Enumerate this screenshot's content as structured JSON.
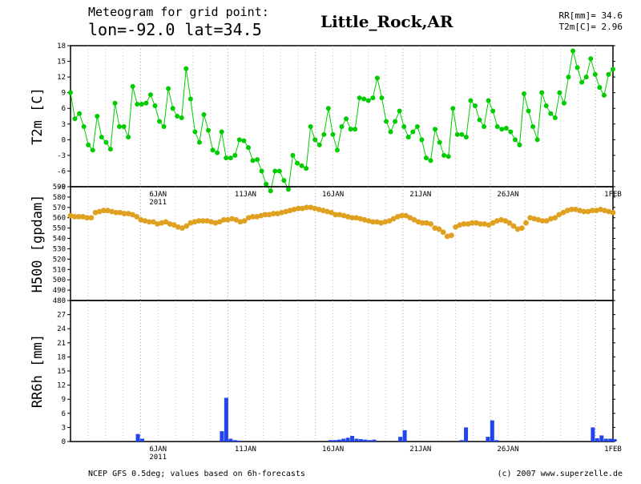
{
  "header": {
    "title_line1": "Meteogram for grid point:",
    "title_line2": "lon=-92.0  lat=34.5",
    "location": "Little_Rock,AR",
    "summary_rr": "RR[mm]= 34.6",
    "summary_t2m": "T2m[C]= 2.96"
  },
  "footer": {
    "left": "NCEP GFS 0.5deg; values based on 6h-forecasts",
    "right": "(c) 2007 www.superzelle.de"
  },
  "colors": {
    "t2m": "#00cc00",
    "h500": "#e0a020",
    "rr": "#2244ee"
  },
  "chart_data": [
    {
      "type": "line",
      "ylabel": "T2m [C]",
      "ylim": [
        -9,
        18
      ],
      "yticks": [
        "18",
        "15",
        "12",
        "9",
        "6",
        "3",
        "0",
        "-3",
        "-6",
        "-9"
      ],
      "x_tick_labels": [
        {
          "day": 5,
          "label": "6JAN",
          "sub": "2011"
        },
        {
          "day": 10,
          "label": "11JAN"
        },
        {
          "day": 15,
          "label": "16JAN"
        },
        {
          "day": 20,
          "label": "21JAN"
        },
        {
          "day": 25,
          "label": "26JAN"
        },
        {
          "day": 31,
          "label": "1FEB"
        }
      ],
      "x_start_day": 1,
      "x_end_day": 31,
      "series": [
        {
          "values": [
            9,
            4,
            5,
            2.5,
            -1,
            -2,
            4.5,
            0.5,
            -0.5,
            -1.8,
            7,
            2.5,
            2.5,
            0.5,
            10.2,
            6.8,
            6.8,
            7,
            8.6,
            6.5,
            3.5,
            2.5,
            9.8,
            6,
            4.5,
            4.2,
            13.6,
            7.8,
            1.5,
            -0.5,
            4.8,
            1.8,
            -2,
            -2.5,
            1.5,
            -3.5,
            -3.5,
            -3,
            0,
            -0.2,
            -1.5,
            -4,
            -3.8,
            -6,
            -8.5,
            -9.8,
            -6,
            -6,
            -7.8,
            -9.5,
            -3,
            -4.5,
            -5,
            -5.5,
            2.5,
            0,
            -1,
            1,
            6,
            1,
            -2,
            2.5,
            4,
            2,
            2,
            8,
            7.8,
            7.5,
            8,
            11.8,
            8,
            3.5,
            1.5,
            3.5,
            5.5,
            2.5,
            0.5,
            1.5,
            2.5,
            0,
            -3.5,
            -4,
            2,
            -0.5,
            -3,
            -3.2,
            6,
            1,
            1,
            0.5,
            7.5,
            6.5,
            3.8,
            2.5,
            7.5,
            5.5,
            2.5,
            2,
            2.2,
            1.5,
            0,
            -1,
            8.8,
            5.5,
            2.5,
            0,
            9,
            6.5,
            5,
            4.2,
            9,
            7,
            12,
            17,
            13.8,
            11,
            12,
            15.5,
            12.5,
            10,
            8.5,
            12.5,
            13.5
          ]
        }
      ]
    },
    {
      "type": "scatter",
      "ylabel": "H500 [gpdam]",
      "ylim": [
        480,
        590
      ],
      "yticks": [
        "590",
        "580",
        "570",
        "560",
        "550",
        "540",
        "530",
        "520",
        "510",
        "500",
        "490",
        "480"
      ],
      "x_tick_labels": [],
      "x_start_day": 1,
      "x_end_day": 31,
      "series": [
        {
          "values": [
            562,
            561,
            561,
            561,
            560,
            560,
            565,
            566,
            567,
            567,
            566,
            565,
            565,
            564,
            564,
            563,
            561,
            558,
            557,
            556,
            556,
            554,
            555,
            556,
            554,
            553,
            551,
            550,
            552,
            555,
            556,
            557,
            557,
            557,
            556,
            555,
            556,
            558,
            558,
            559,
            558,
            556,
            557,
            560,
            561,
            561,
            562,
            563,
            563,
            564,
            564,
            565,
            566,
            567,
            568,
            569,
            569,
            570,
            570,
            569,
            568,
            567,
            566,
            565,
            563,
            563,
            562,
            561,
            560,
            560,
            559,
            558,
            557,
            556,
            556,
            555,
            556,
            557,
            559,
            561,
            562,
            562,
            560,
            558,
            556,
            555,
            555,
            554,
            550,
            549,
            546,
            542,
            543,
            551,
            553,
            554,
            554,
            555,
            555,
            554,
            554,
            553,
            555,
            557,
            558,
            557,
            555,
            552,
            549,
            550,
            555,
            560,
            559,
            558,
            557,
            557,
            559,
            560,
            563,
            565,
            567,
            568,
            568,
            567,
            566,
            566,
            567,
            567,
            568,
            567,
            566,
            565
          ]
        }
      ]
    },
    {
      "type": "bar",
      "ylabel": "RR6h [mm]",
      "ylim": [
        0,
        30
      ],
      "yticks": [
        "27",
        "24",
        "21",
        "18",
        "15",
        "12",
        "9",
        "6",
        "3",
        "0"
      ],
      "x_tick_labels": [
        {
          "day": 5,
          "label": "6JAN",
          "sub": "2011"
        },
        {
          "day": 10,
          "label": "11JAN"
        },
        {
          "day": 15,
          "label": "16JAN"
        },
        {
          "day": 20,
          "label": "21JAN"
        },
        {
          "day": 25,
          "label": "26JAN"
        },
        {
          "day": 31,
          "label": "1FEB"
        }
      ],
      "x_start_day": 1,
      "x_end_day": 31,
      "series": [
        {
          "values": [
            0,
            0,
            0,
            0,
            0,
            0,
            0,
            0,
            0,
            0,
            0,
            0,
            0,
            0,
            0,
            0,
            0,
            0,
            0,
            0,
            0,
            0,
            0,
            0,
            0,
            0,
            0,
            0,
            0,
            0,
            0,
            0,
            0,
            0,
            0,
            0,
            0,
            0,
            0,
            0,
            0,
            0,
            0,
            0,
            0,
            0,
            0,
            0,
            0,
            0,
            0,
            0,
            0,
            0,
            0,
            0,
            0,
            0,
            0,
            0,
            0,
            0,
            0,
            0,
            0,
            0,
            0,
            0,
            0,
            0,
            0,
            0,
            0,
            0,
            0,
            0,
            0,
            0,
            0,
            0,
            0,
            0,
            0,
            0,
            0,
            0,
            0,
            0,
            0,
            0,
            0,
            0,
            0,
            0,
            0,
            0,
            0,
            0,
            0,
            0,
            0,
            0,
            0,
            0,
            0,
            0,
            0,
            0,
            0,
            0,
            0,
            0,
            0,
            0,
            0,
            0,
            0,
            0,
            0,
            0,
            0,
            0,
            0,
            0
          ]
        }
      ],
      "bars": [
        {
          "x": 4.85,
          "value": 1.6
        },
        {
          "x": 5.1,
          "value": 0.6
        },
        {
          "x": 9.65,
          "value": 2.2
        },
        {
          "x": 9.9,
          "value": 9.3
        },
        {
          "x": 10.15,
          "value": 0.6
        },
        {
          "x": 10.4,
          "value": 0.3
        },
        {
          "x": 10.65,
          "value": 0.2
        },
        {
          "x": 15.85,
          "value": 0.3
        },
        {
          "x": 16.1,
          "value": 0.3
        },
        {
          "x": 16.35,
          "value": 0.4
        },
        {
          "x": 16.6,
          "value": 0.6
        },
        {
          "x": 16.85,
          "value": 0.8
        },
        {
          "x": 17.1,
          "value": 1.2
        },
        {
          "x": 17.35,
          "value": 0.6
        },
        {
          "x": 17.6,
          "value": 0.5
        },
        {
          "x": 17.85,
          "value": 0.4
        },
        {
          "x": 18.1,
          "value": 0.3
        },
        {
          "x": 18.35,
          "value": 0.4
        },
        {
          "x": 19.85,
          "value": 1.0
        },
        {
          "x": 20.1,
          "value": 2.4
        },
        {
          "x": 23.35,
          "value": 0.3
        },
        {
          "x": 23.6,
          "value": 3.0
        },
        {
          "x": 24.85,
          "value": 1.0
        },
        {
          "x": 25.1,
          "value": 4.5
        },
        {
          "x": 25.35,
          "value": 0.3
        },
        {
          "x": 30.85,
          "value": 3.0
        },
        {
          "x": 31.1,
          "value": 0.7
        },
        {
          "x": 31.35,
          "value": 1.3
        },
        {
          "x": 31.6,
          "value": 0.6
        },
        {
          "x": 31.85,
          "value": 0.6
        },
        {
          "x": 32.1,
          "value": 0.5
        }
      ]
    }
  ]
}
